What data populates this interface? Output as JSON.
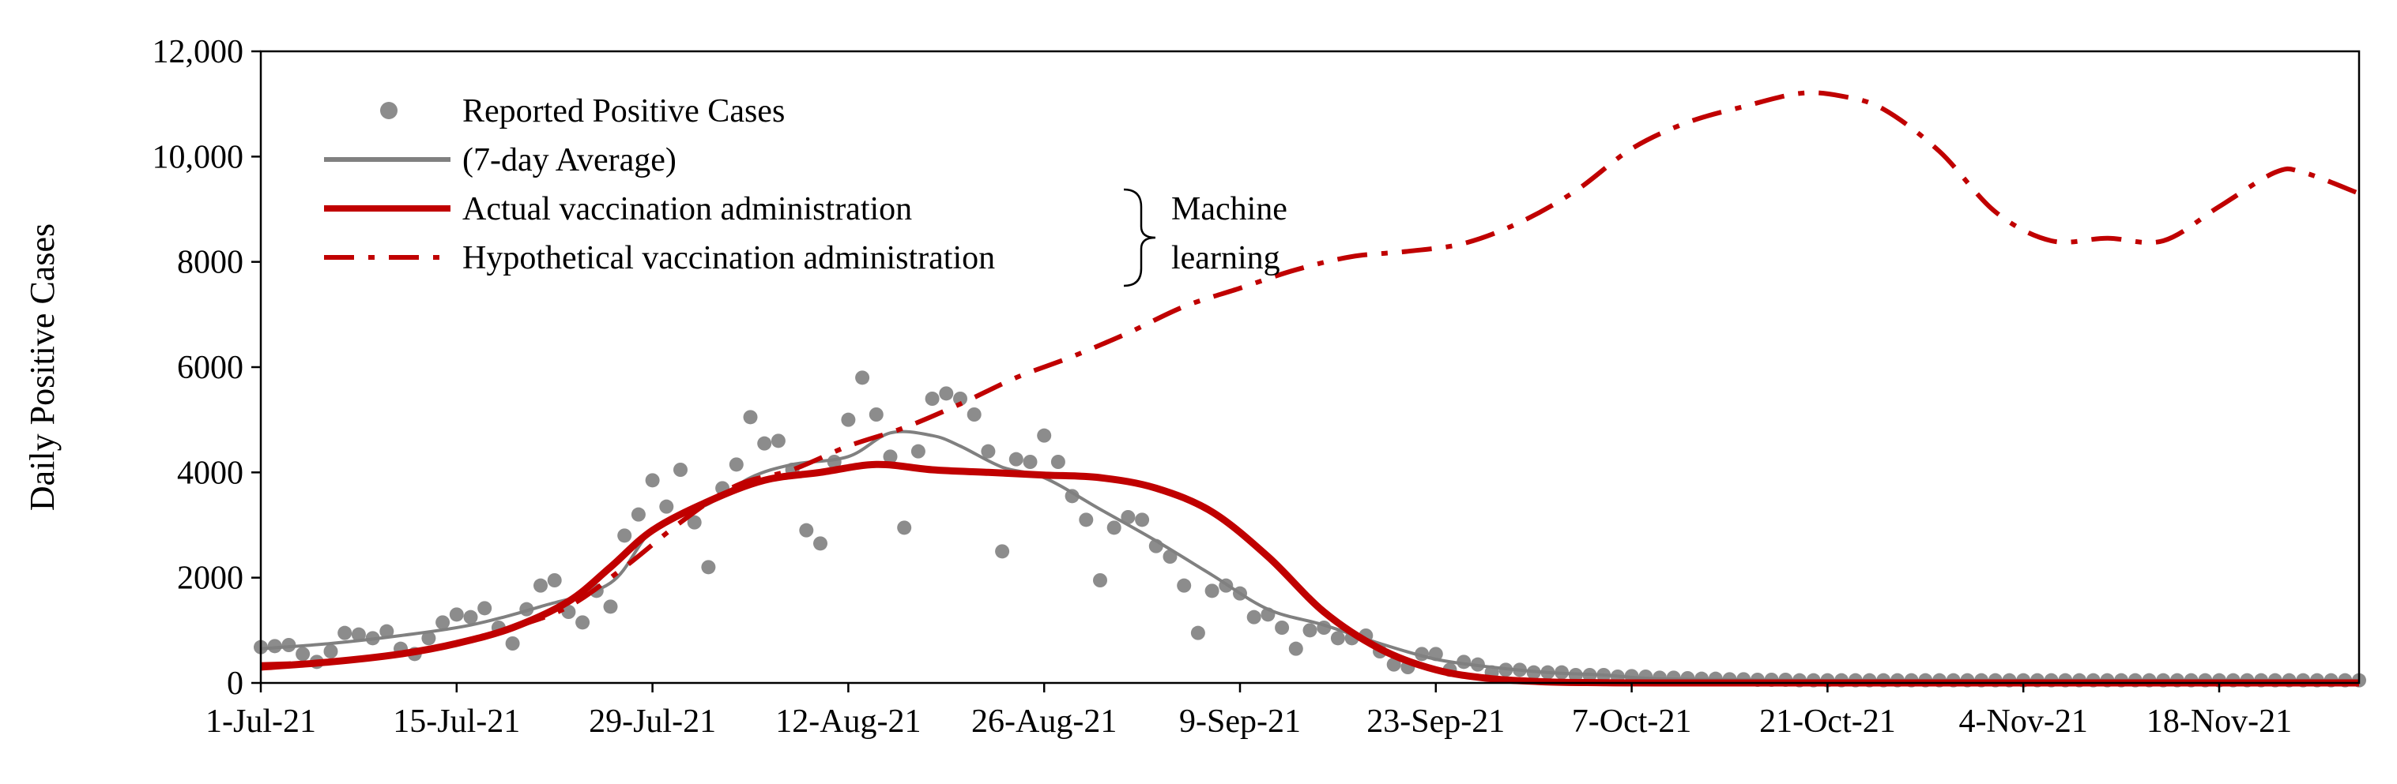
{
  "chart_data": {
    "type": "line",
    "title": "",
    "xlabel": "",
    "ylabel": "Daily Positive Cases",
    "ylim": [
      0,
      12000
    ],
    "xlim_days": [
      0,
      150
    ],
    "x_start_date": "1-Jul-21",
    "grid": false,
    "y_ticks": [
      {
        "value": 0,
        "label": "0"
      },
      {
        "value": 2000,
        "label": "2000"
      },
      {
        "value": 4000,
        "label": "4000"
      },
      {
        "value": 6000,
        "label": "6000"
      },
      {
        "value": 8000,
        "label": "8000"
      },
      {
        "value": 10000,
        "label": "10,000"
      },
      {
        "value": 12000,
        "label": "12,000"
      }
    ],
    "x_ticks": [
      {
        "day": 0,
        "label": "1-Jul-21"
      },
      {
        "day": 14,
        "label": "15-Jul-21"
      },
      {
        "day": 28,
        "label": "29-Jul-21"
      },
      {
        "day": 42,
        "label": "12-Aug-21"
      },
      {
        "day": 56,
        "label": "26-Aug-21"
      },
      {
        "day": 70,
        "label": "9-Sep-21"
      },
      {
        "day": 84,
        "label": "23-Sep-21"
      },
      {
        "day": 98,
        "label": "7-Oct-21"
      },
      {
        "day": 112,
        "label": "21-Oct-21"
      },
      {
        "day": 126,
        "label": "4-Nov-21"
      },
      {
        "day": 140,
        "label": "18-Nov-21"
      }
    ],
    "legend": {
      "placement": "top-left",
      "entries": [
        {
          "name": "Reported Positive Cases",
          "style": "marker"
        },
        {
          "name": "(7-day Average)",
          "style": "solid-gray"
        },
        {
          "name": "Actual vaccination administration",
          "style": "solid-red"
        },
        {
          "name": "Hypothetical vaccination administration",
          "style": "dashdot-red"
        }
      ],
      "bracket_label": [
        "Machine",
        "learning"
      ]
    },
    "colors": {
      "reported": "#8c8c8c",
      "average": "#808080",
      "actual": "#c00000",
      "hypothetical": "#c00000"
    },
    "series": [
      {
        "name": "Reported Positive Cases",
        "kind": "scatter",
        "x": [
          0,
          1,
          2,
          3,
          4,
          5,
          6,
          7,
          8,
          9,
          10,
          11,
          12,
          13,
          14,
          15,
          16,
          17,
          18,
          19,
          20,
          21,
          22,
          23,
          24,
          25,
          26,
          27,
          28,
          29,
          30,
          31,
          32,
          33,
          34,
          35,
          36,
          37,
          38,
          39,
          40,
          41,
          42,
          43,
          44,
          45,
          46,
          47,
          48,
          49,
          50,
          51,
          52,
          53,
          54,
          55,
          56,
          57,
          58,
          59,
          60,
          61,
          62,
          63,
          64,
          65,
          66,
          67,
          68,
          69,
          70,
          71,
          72,
          73,
          74,
          75,
          76,
          77,
          78,
          79,
          80,
          81,
          82,
          83,
          84,
          85,
          86,
          87,
          88,
          89,
          90,
          91,
          92,
          93,
          94,
          95,
          96,
          97,
          98,
          99,
          100,
          101,
          102,
          103,
          104,
          105,
          106,
          107,
          108,
          109,
          110,
          111,
          112,
          113,
          114,
          115,
          116,
          117,
          118,
          119,
          120,
          121,
          122,
          123,
          124,
          125,
          126,
          127,
          128,
          129,
          130,
          131,
          132,
          133,
          134,
          135,
          136,
          137,
          138,
          139,
          140,
          141,
          142,
          143,
          144,
          145,
          146,
          147,
          148,
          149,
          150
        ],
        "values": [
          680,
          700,
          720,
          550,
          400,
          600,
          950,
          920,
          850,
          980,
          650,
          550,
          850,
          1150,
          1300,
          1250,
          1420,
          1050,
          750,
          1400,
          1850,
          1950,
          1350,
          1150,
          1750,
          1450,
          2800,
          3200,
          3850,
          3350,
          4050,
          3050,
          2200,
          3700,
          4150,
          5050,
          4550,
          4600,
          4050,
          2900,
          2650,
          4200,
          5000,
          5800,
          5100,
          4300,
          2950,
          4400,
          5400,
          5500,
          5400,
          5100,
          4400,
          2500,
          4250,
          4200,
          4700,
          4200,
          3550,
          3100,
          1950,
          2950,
          3150,
          3100,
          2600,
          2400,
          1850,
          950,
          1750,
          1850,
          1700,
          1250,
          1300,
          1050,
          650,
          1000,
          1050,
          850,
          850,
          900,
          600,
          350,
          300,
          550,
          550,
          250,
          400,
          350,
          200,
          250,
          250,
          200,
          200,
          200,
          150,
          150,
          150,
          120,
          130,
          120,
          100,
          100,
          90,
          80,
          80,
          70,
          70,
          60,
          60,
          60,
          50,
          50,
          50,
          50,
          50,
          50,
          50,
          50,
          50,
          50,
          50,
          50,
          50,
          50,
          50,
          50,
          50,
          50,
          50,
          50,
          50,
          50,
          50,
          50,
          50,
          50,
          50,
          50,
          50,
          50,
          50,
          50,
          50,
          50,
          50,
          50,
          50,
          50,
          50,
          50,
          50
        ]
      },
      {
        "name": "(7-day Average)",
        "kind": "line",
        "x": [
          0,
          5,
          10,
          15,
          20,
          25,
          28,
          32,
          35,
          38,
          42,
          45,
          48,
          50,
          53,
          56,
          60,
          64,
          68,
          72,
          76,
          80,
          84,
          88,
          92,
          96,
          100,
          110,
          120,
          130,
          140,
          150
        ],
        "values": [
          650,
          750,
          900,
          1100,
          1450,
          1900,
          2900,
          3400,
          3900,
          4150,
          4300,
          4750,
          4700,
          4500,
          4100,
          3900,
          3300,
          2700,
          2050,
          1400,
          1100,
          750,
          450,
          300,
          200,
          150,
          80,
          50,
          50,
          50,
          50,
          50
        ]
      },
      {
        "name": "Actual vaccination administration",
        "kind": "line",
        "x": [
          0,
          5,
          10,
          14,
          18,
          22,
          25,
          28,
          32,
          36,
          40,
          44,
          48,
          52,
          56,
          60,
          64,
          68,
          72,
          76,
          80,
          84,
          88,
          92,
          96,
          100,
          120,
          140,
          150
        ],
        "values": [
          300,
          400,
          550,
          750,
          1050,
          1550,
          2200,
          2900,
          3450,
          3850,
          4000,
          4150,
          4050,
          4000,
          3950,
          3900,
          3700,
          3250,
          2400,
          1350,
          650,
          250,
          80,
          20,
          5,
          0,
          0,
          0,
          0
        ]
      },
      {
        "name": "Hypothetical vaccination administration",
        "kind": "line",
        "x": [
          0,
          5,
          10,
          14,
          18,
          22,
          26,
          30,
          34,
          38,
          42,
          46,
          50,
          54,
          58,
          62,
          66,
          70,
          74,
          78,
          82,
          86,
          90,
          94,
          98,
          102,
          106,
          110,
          113,
          116,
          120,
          124,
          128,
          132,
          136,
          140,
          144,
          146,
          150
        ],
        "values": [
          350,
          400,
          550,
          750,
          1050,
          1450,
          2200,
          3050,
          3750,
          4050,
          4500,
          4850,
          5300,
          5800,
          6200,
          6650,
          7150,
          7500,
          7850,
          8100,
          8200,
          8350,
          8750,
          9350,
          10150,
          10650,
          10950,
          11200,
          11150,
          10900,
          10100,
          8950,
          8400,
          8450,
          8400,
          9050,
          9700,
          9700,
          9300
        ]
      }
    ]
  }
}
